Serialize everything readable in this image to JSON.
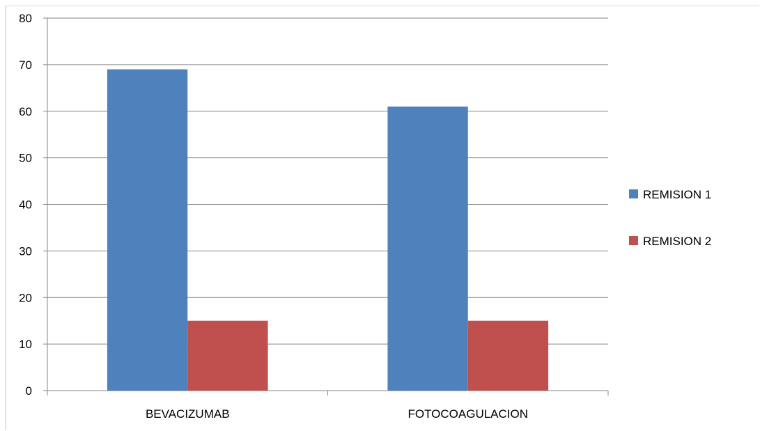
{
  "chart_data": {
    "type": "bar",
    "title": "",
    "xlabel": "",
    "ylabel": "",
    "categories": [
      "BEVACIZUMAB",
      "FOTOCOAGULACION"
    ],
    "series": [
      {
        "name": "REMISION 1",
        "values": [
          69,
          61
        ],
        "color": "#4F81BD"
      },
      {
        "name": "REMISION 2",
        "values": [
          15,
          15
        ],
        "color": "#C0504D"
      }
    ],
    "ylim": [
      0,
      80
    ],
    "yticks": [
      0,
      10,
      20,
      30,
      40,
      50,
      60,
      70,
      80
    ],
    "grid": true,
    "legend_position": "right"
  }
}
